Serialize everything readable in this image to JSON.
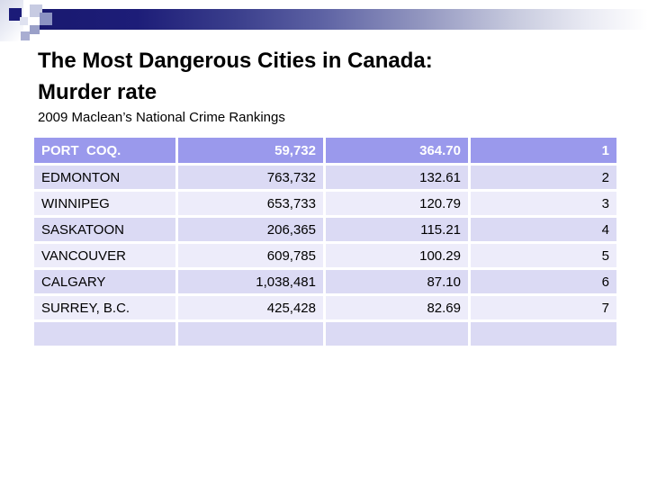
{
  "slide": {
    "title_line1": "The Most Dangerous Cities in Canada:",
    "title_line2": "Murder rate",
    "subtitle": "2009 Maclean’s National Crime Rankings"
  },
  "table": {
    "columns_semantic": [
      "city",
      "population",
      "murder_rate",
      "rank"
    ],
    "header_row": [
      "PORT  COQ.",
      "59,732",
      "364.70",
      "1"
    ],
    "rows": [
      [
        "EDMONTON",
        "763,732",
        "132.61",
        "2"
      ],
      [
        "WINNIPEG",
        "653,733",
        "120.79",
        "3"
      ],
      [
        "SASKATOON",
        "206,365",
        "115.21",
        "4"
      ],
      [
        "VANCOUVER",
        "609,785",
        "100.29",
        "5"
      ],
      [
        "CALGARY",
        "1,038,481",
        "87.10",
        "6"
      ],
      [
        "SURREY, B.C.",
        "425,428",
        "82.69",
        "7"
      ],
      [
        "",
        "",
        "",
        ""
      ]
    ]
  },
  "colors": {
    "header_row_bg": "#9a99ec",
    "row_dark": "#dbdaf4",
    "row_light": "#edecfa",
    "bar_navy": "#191970",
    "title_text": "#000000",
    "header_text": "#ffffff"
  }
}
